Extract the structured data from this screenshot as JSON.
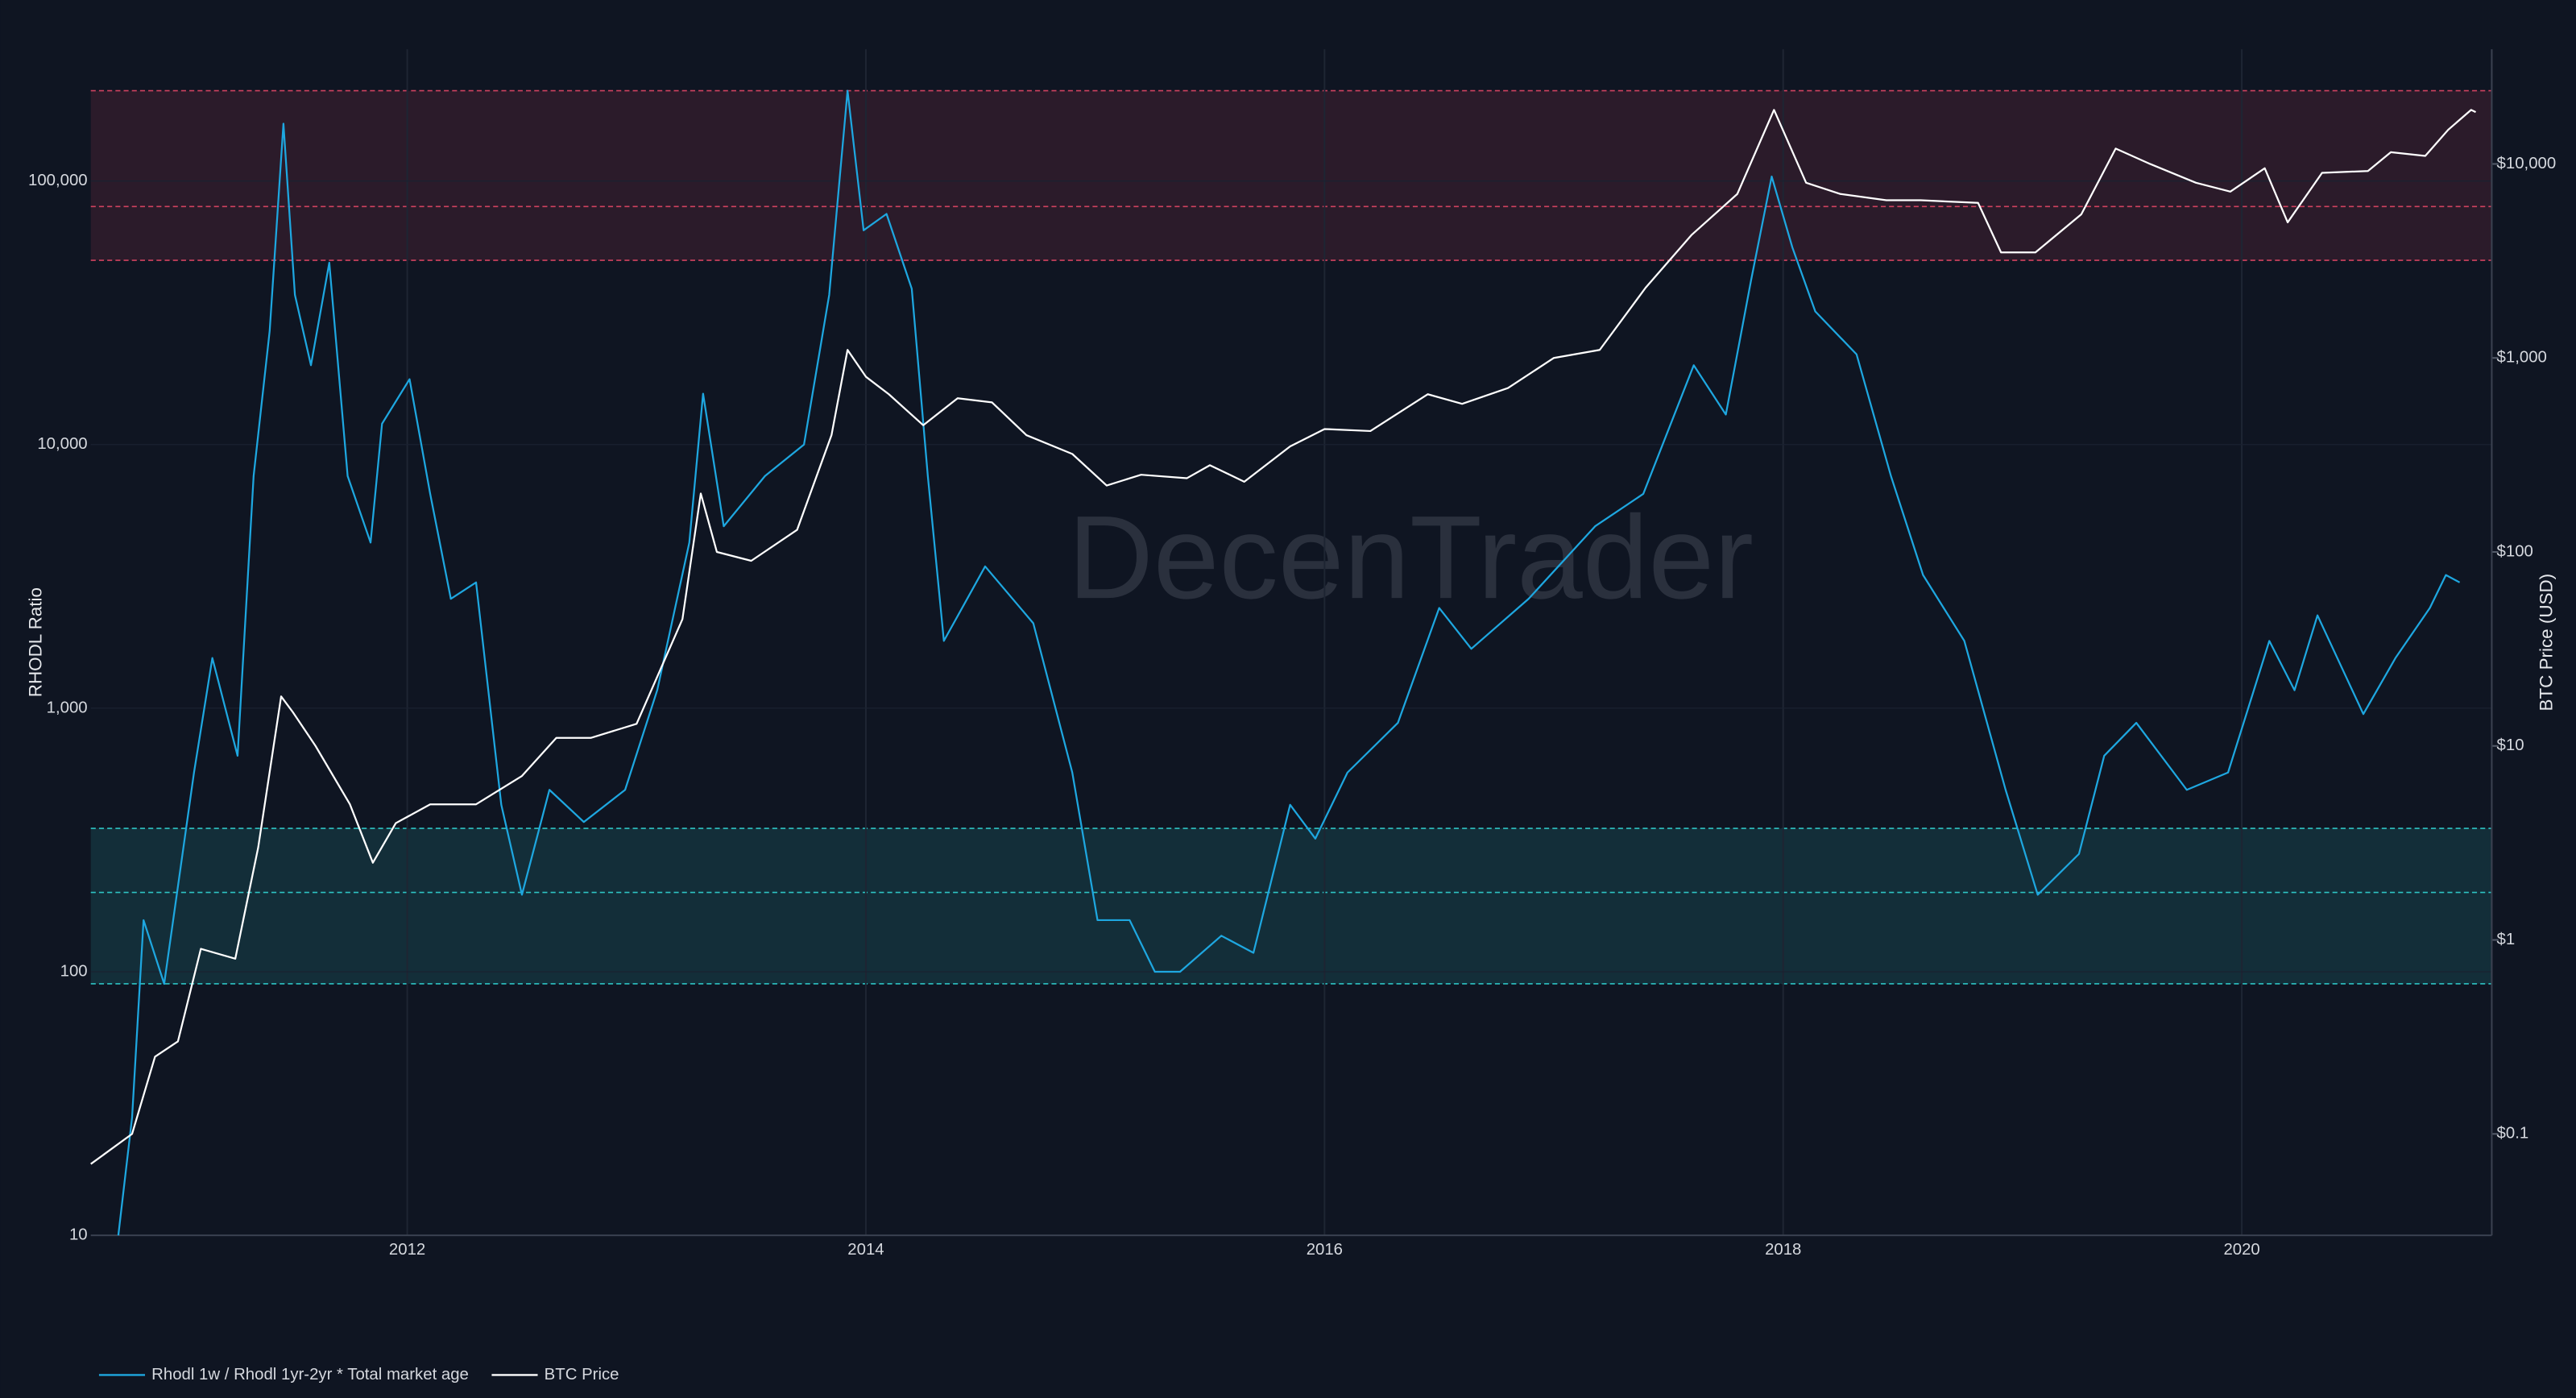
{
  "chart_data": {
    "type": "line",
    "watermark": "DecenTrader",
    "y_label": "RHODL Ratio",
    "y2_label": "BTC Price (USD)",
    "xlim": [
      2010.62,
      2021.09
    ],
    "xticks": [
      2012,
      2014,
      2016,
      2018,
      2020
    ],
    "ylim": [
      10,
      316000
    ],
    "yticks": [
      10,
      100,
      {
        "value": 1000,
        "label": "1,000"
      },
      {
        "value": 10000,
        "label": "10,000"
      },
      {
        "value": 100000,
        "label": "100,000"
      }
    ],
    "y2lim": [
      0.03,
      39000
    ],
    "y2ticks": [
      {
        "value": 0.1,
        "label": "$0.1"
      },
      {
        "value": 1,
        "label": "$1"
      },
      {
        "value": 10,
        "label": "$10"
      },
      {
        "value": 100,
        "label": "$100"
      },
      {
        "value": 1000,
        "label": "$1,000"
      },
      {
        "value": 10000,
        "label": "$10,000"
      }
    ],
    "log_scale": true,
    "grid": true,
    "legend": "bottom-left",
    "bands": [
      {
        "range": [
          50000,
          220000
        ],
        "mid": 80000,
        "color": "#d0425f"
      },
      {
        "range": [
          90,
          350
        ],
        "mid": 200,
        "color": "#2ec4c4"
      }
    ],
    "series": [
      {
        "name": "Rhodl 1w / Rhodl 1yr-2yr * Total market age",
        "color": "#1ea7e0",
        "axis": "y",
        "x": [
          2010.74,
          2010.8,
          2010.85,
          2010.94,
          2011.07,
          2011.15,
          2011.26,
          2011.33,
          2011.4,
          2011.46,
          2011.51,
          2011.58,
          2011.66,
          2011.74,
          2011.84,
          2011.89,
          2012.01,
          2012.1,
          2012.19,
          2012.3,
          2012.41,
          2012.5,
          2012.62,
          2012.77,
          2012.95,
          2013.09,
          2013.23,
          2013.29,
          2013.38,
          2013.56,
          2013.73,
          2013.84,
          2013.92,
          2013.99,
          2014.09,
          2014.2,
          2014.27,
          2014.34,
          2014.52,
          2014.73,
          2014.9,
          2015.01,
          2015.15,
          2015.26,
          2015.37,
          2015.55,
          2015.69,
          2015.85,
          2015.96,
          2016.1,
          2016.32,
          2016.5,
          2016.64,
          2016.89,
          2017.18,
          2017.39,
          2017.61,
          2017.75,
          2017.86,
          2017.95,
          2018.04,
          2018.14,
          2018.32,
          2018.47,
          2018.61,
          2018.79,
          2018.97,
          2019.11,
          2019.29,
          2019.4,
          2019.54,
          2019.76,
          2019.94,
          2020.12,
          2020.23,
          2020.33,
          2020.53,
          2020.67,
          2020.82,
          2020.89,
          2020.95
        ],
        "values": [
          10,
          28,
          157,
          90,
          570,
          1550,
          660,
          7600,
          27000,
          165000,
          37000,
          20000,
          49000,
          7600,
          4250,
          12000,
          17700,
          6500,
          2600,
          3000,
          430,
          196,
          490,
          370,
          490,
          1170,
          4250,
          15600,
          4900,
          7600,
          10000,
          37000,
          220000,
          65000,
          75000,
          39000,
          7600,
          1800,
          3450,
          2100,
          570,
          157,
          157,
          100,
          100,
          137,
          118,
          430,
          320,
          570,
          880,
          2400,
          1680,
          2600,
          4900,
          6500,
          20000,
          13000,
          42000,
          104000,
          56000,
          32000,
          22000,
          7600,
          3200,
          1800,
          490,
          196,
          280,
          660,
          880,
          490,
          570,
          1800,
          1170,
          2250,
          950,
          1550,
          2400,
          3200,
          3000
        ]
      },
      {
        "name": "BTC Price",
        "color": "#ffffff",
        "axis": "y2",
        "x": [
          2010.62,
          2010.8,
          2010.9,
          2011.0,
          2011.1,
          2011.25,
          2011.35,
          2011.45,
          2011.5,
          2011.6,
          2011.75,
          2011.85,
          2011.95,
          2012.1,
          2012.3,
          2012.5,
          2012.65,
          2012.8,
          2013.0,
          2013.2,
          2013.28,
          2013.35,
          2013.5,
          2013.7,
          2013.85,
          2013.92,
          2014.0,
          2014.1,
          2014.25,
          2014.4,
          2014.55,
          2014.7,
          2014.9,
          2015.05,
          2015.2,
          2015.4,
          2015.5,
          2015.65,
          2015.85,
          2016.0,
          2016.2,
          2016.45,
          2016.6,
          2016.8,
          2017.0,
          2017.2,
          2017.4,
          2017.6,
          2017.8,
          2017.96,
          2018.1,
          2018.25,
          2018.45,
          2018.6,
          2018.85,
          2018.95,
          2019.1,
          2019.3,
          2019.45,
          2019.6,
          2019.8,
          2019.95,
          2020.1,
          2020.2,
          2020.35,
          2020.55,
          2020.65,
          2020.8,
          2020.9,
          2021.0,
          2021.02
        ],
        "values": [
          0.07,
          0.1,
          0.25,
          0.3,
          0.9,
          0.8,
          3,
          18,
          15,
          10,
          5,
          2.5,
          4,
          5,
          5,
          7,
          11,
          11,
          13,
          45,
          200,
          100,
          90,
          130,
          400,
          1100,
          800,
          650,
          450,
          620,
          590,
          400,
          320,
          220,
          250,
          240,
          280,
          230,
          350,
          430,
          420,
          650,
          580,
          700,
          1000,
          1100,
          2300,
          4300,
          7000,
          19000,
          8000,
          7000,
          6500,
          6500,
          6300,
          3500,
          3500,
          5500,
          12000,
          10000,
          8000,
          7200,
          9500,
          5000,
          9000,
          9200,
          11500,
          11000,
          15000,
          19000,
          18500
        ]
      }
    ]
  }
}
